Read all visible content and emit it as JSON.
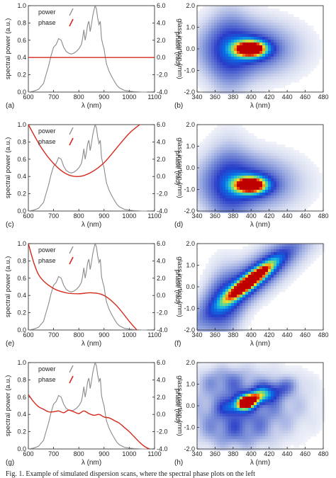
{
  "caption": "Fig. 1. Example of simulated dispersion scans, where the spectral phase plots on the left",
  "spectrum": {
    "x": [
      600,
      620,
      640,
      660,
      670,
      680,
      690,
      700,
      710,
      720,
      730,
      740,
      750,
      760,
      770,
      780,
      790,
      800,
      810,
      815,
      820,
      825,
      830,
      835,
      840,
      845,
      850,
      855,
      860,
      865,
      870,
      875,
      880,
      885,
      890,
      895,
      900,
      905,
      910,
      920,
      930,
      940,
      950,
      960,
      980,
      1000,
      1020,
      1050,
      1070
    ],
    "y": [
      0,
      0.01,
      0.03,
      0.1,
      0.2,
      0.3,
      0.42,
      0.52,
      0.55,
      0.62,
      0.6,
      0.52,
      0.47,
      0.45,
      0.44,
      0.45,
      0.47,
      0.5,
      0.55,
      0.62,
      0.72,
      0.6,
      0.68,
      0.78,
      0.82,
      0.7,
      0.78,
      0.88,
      0.95,
      1.0,
      0.96,
      0.85,
      0.78,
      0.82,
      0.62,
      0.55,
      0.5,
      0.4,
      0.32,
      0.24,
      0.18,
      0.13,
      0.08,
      0.05,
      0.02,
      0.01,
      0.005,
      0,
      0
    ]
  },
  "left_axes": {
    "xlabel": "λ (nm)",
    "ylabel": "spectral power (a.u.)",
    "y2label": "phase (rad)",
    "xticks": [
      "600",
      "700",
      "800",
      "900",
      "1000",
      "1100"
    ],
    "yticks": [
      "0.0",
      "0.2",
      "0.4",
      "0.6",
      "0.8",
      "1.0"
    ],
    "y2ticks": [
      "-4.0",
      "-2.0",
      "0.0",
      "2.0",
      "4.0",
      "6.0"
    ],
    "legend": [
      "power",
      "phase"
    ]
  },
  "right_axes": {
    "xlabel": "λ (nm)",
    "ylabel": "glass insertion (mm)",
    "xticks": [
      "340",
      "360",
      "380",
      "400",
      "420",
      "440",
      "460",
      "480"
    ],
    "yticks": [
      "-2.0",
      "-1.0",
      "0.0",
      "1.0",
      "2.0"
    ]
  },
  "chart_data": [
    {
      "type": "line",
      "panel": "a",
      "xlim": [
        600,
        1100
      ],
      "ylim": [
        0,
        1
      ],
      "y2lim": [
        -4,
        6
      ],
      "series": [
        {
          "name": "power",
          "axis": "left"
        },
        {
          "name": "phase",
          "axis": "right",
          "phase_model": "flat",
          "x": [
            600,
            1100
          ],
          "y": [
            0,
            0
          ]
        }
      ]
    },
    {
      "type": "heatmap",
      "panel": "b",
      "xlim": [
        340,
        480
      ],
      "ylim": [
        -2,
        2
      ],
      "trace": "centered",
      "center_x": 400,
      "center_y": 0.0,
      "tilt": 0
    },
    {
      "type": "line",
      "panel": "c",
      "xlim": [
        600,
        1100
      ],
      "ylim": [
        0,
        1
      ],
      "y2lim": [
        -4,
        6
      ],
      "series": [
        {
          "name": "power",
          "axis": "left"
        },
        {
          "name": "phase",
          "axis": "right",
          "phase_model": "quadratic",
          "x": [
            600,
            650,
            700,
            750,
            800,
            850,
            900,
            950,
            1000,
            1050
          ],
          "y": [
            6.0,
            3.4,
            1.5,
            0.3,
            0.0,
            0.5,
            1.6,
            3.3,
            5.0,
            6.2
          ]
        }
      ]
    },
    {
      "type": "heatmap",
      "panel": "d",
      "xlim": [
        340,
        480
      ],
      "ylim": [
        -2,
        2
      ],
      "trace": "shifted",
      "center_x": 400,
      "center_y": -0.8,
      "tilt": 0
    },
    {
      "type": "line",
      "panel": "e",
      "xlim": [
        600,
        1100
      ],
      "ylim": [
        0,
        1
      ],
      "y2lim": [
        -4,
        6
      ],
      "series": [
        {
          "name": "power",
          "axis": "left"
        },
        {
          "name": "phase",
          "axis": "right",
          "phase_model": "cubic",
          "x": [
            600,
            625,
            650,
            700,
            750,
            800,
            850,
            900,
            950,
            1000,
            1030
          ],
          "y": [
            6.0,
            3.5,
            2.0,
            0.8,
            0.3,
            0.2,
            0.3,
            0.0,
            -1.2,
            -3.0,
            -4.0
          ]
        }
      ]
    },
    {
      "type": "heatmap",
      "panel": "f",
      "xlim": [
        340,
        480
      ],
      "ylim": [
        -2,
        2
      ],
      "trace": "tilted",
      "center_x": 400,
      "center_y": 0.3,
      "tilt": 0.03
    },
    {
      "type": "line",
      "panel": "g",
      "xlim": [
        600,
        1100
      ],
      "ylim": [
        0,
        1
      ],
      "y2lim": [
        -4,
        6
      ],
      "series": [
        {
          "name": "power",
          "axis": "left"
        },
        {
          "name": "phase",
          "axis": "right",
          "phase_model": "oscillating",
          "x": [
            600,
            620,
            640,
            660,
            680,
            700,
            720,
            740,
            760,
            780,
            800,
            820,
            840,
            860,
            880,
            900,
            920,
            940,
            960,
            980,
            1000,
            1020,
            1040,
            1060,
            1080
          ],
          "y": [
            2.3,
            1.5,
            0.9,
            0.6,
            0.3,
            0.3,
            0.4,
            0.2,
            0.5,
            0.3,
            0.1,
            0.4,
            0.1,
            -0.1,
            0.0,
            -0.3,
            -0.4,
            -0.7,
            -1.0,
            -1.5,
            -2.0,
            -2.6,
            -3.2,
            -3.7,
            -4.0
          ]
        }
      ]
    },
    {
      "type": "heatmap",
      "panel": "h",
      "xlim": [
        340,
        480
      ],
      "ylim": [
        -2,
        2
      ],
      "trace": "fragmented",
      "center_x": 398,
      "center_y": 0.2,
      "tilt": 0.012
    }
  ],
  "colors": {
    "power": "#8a8a8a",
    "phase": "#d42a1c",
    "axis": "#222222"
  },
  "panels": [
    {
      "letter": "(a)"
    },
    {
      "letter": "(b)"
    },
    {
      "letter": "(c)"
    },
    {
      "letter": "(d)"
    },
    {
      "letter": "(e)"
    },
    {
      "letter": "(f)"
    },
    {
      "letter": "(g)"
    },
    {
      "letter": "(h)"
    }
  ]
}
